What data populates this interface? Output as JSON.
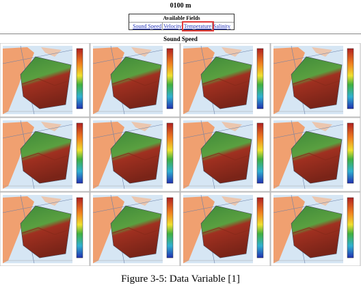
{
  "header": {
    "depth": "0100 m"
  },
  "fields": {
    "title": "Available Fields",
    "links": [
      "Sound Speed",
      "Velocity",
      "Temperature",
      "Salinity"
    ]
  },
  "panel": {
    "title": "Sound Speed"
  },
  "caption": "Figure 3-5: Data Variable [1]"
}
